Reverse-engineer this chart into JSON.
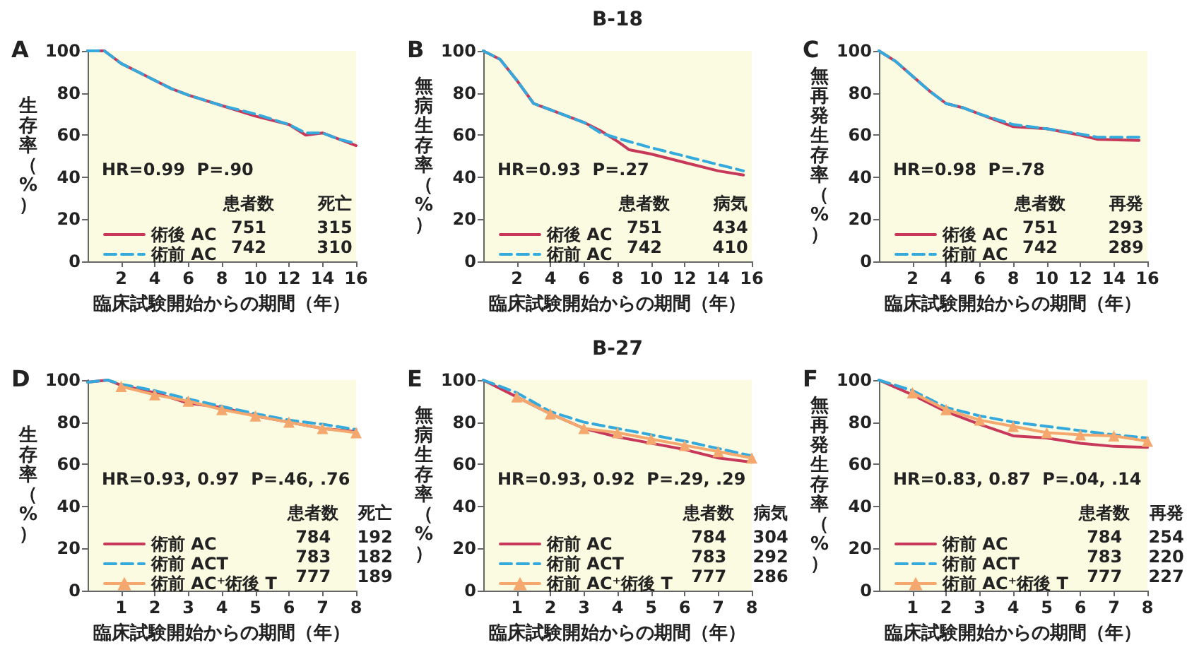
{
  "chart_data": [
    {
      "type": "line",
      "title": "A",
      "xlabel": "臨床試験開始からの期間（年）",
      "ylabel": "生存率（%）",
      "xlim": [
        0,
        16
      ],
      "xticks": [
        2,
        4,
        6,
        8,
        10,
        12,
        14,
        16
      ],
      "ylim": [
        0,
        100
      ],
      "yticks": [
        0,
        20,
        40,
        60,
        80,
        100
      ],
      "grid": false,
      "legend": "bottom left",
      "annotations": [
        "HR=0.99  P=.90",
        "患者数",
        "死亡",
        "751",
        "315",
        "742",
        "310"
      ],
      "series": [
        {
          "name": "術後 AC",
          "color": "#c8385a",
          "line_style": "solid",
          "marker": "none",
          "x": [
            0,
            1,
            2,
            3,
            4,
            5,
            6,
            8,
            10,
            12,
            13,
            14,
            15,
            16
          ],
          "values": [
            100,
            100,
            94,
            90,
            86,
            82,
            79,
            74,
            69,
            65,
            60,
            61,
            58,
            55
          ]
        },
        {
          "name": "術前 AC",
          "color": "#33a9dc",
          "line_style": "dashed",
          "marker": "none",
          "x": [
            0,
            1,
            2,
            3,
            4,
            5,
            6,
            8,
            10,
            12,
            13,
            14,
            15,
            16
          ],
          "values": [
            100,
            100,
            94,
            90,
            86,
            82,
            79,
            74,
            70,
            65,
            61,
            61,
            58,
            56
          ]
        }
      ]
    },
    {
      "type": "line",
      "title": "B",
      "subtitle": "B-18",
      "xlabel": "臨床試験開始からの期間（年）",
      "ylabel": "無病生存率（%）",
      "xlim": [
        0,
        16
      ],
      "xticks": [
        2,
        4,
        6,
        8,
        10,
        12,
        14,
        16
      ],
      "ylim": [
        0,
        100
      ],
      "yticks": [
        0,
        20,
        40,
        60,
        80,
        100
      ],
      "grid": false,
      "legend": "bottom left",
      "annotations": [
        "HR=0.93  P=.27",
        "患者数",
        "病気",
        "751",
        "434",
        "742",
        "410"
      ],
      "series": [
        {
          "name": "術後 AC",
          "color": "#c8385a",
          "line_style": "solid",
          "marker": "none",
          "x": [
            0,
            0.5,
            1,
            2,
            3,
            4,
            6,
            7,
            8,
            8.7,
            10,
            12,
            14,
            15.5
          ],
          "values": [
            100,
            98,
            96,
            86,
            75,
            72,
            66,
            62,
            57,
            53,
            51,
            47,
            43,
            41
          ]
        },
        {
          "name": "術前 AC",
          "color": "#33a9dc",
          "line_style": "dashed",
          "marker": "none",
          "x": [
            0,
            0.5,
            1,
            2,
            3,
            4,
            6,
            7,
            8,
            10,
            12,
            14,
            15.5
          ],
          "values": [
            100,
            98,
            96,
            86,
            75,
            72,
            66,
            61,
            58.5,
            54,
            50,
            46,
            43
          ]
        }
      ]
    },
    {
      "type": "line",
      "title": "C",
      "xlabel": "臨床試験開始からの期間（年）",
      "ylabel": "無再発生存率（%）",
      "xlim": [
        0,
        16
      ],
      "xticks": [
        2,
        4,
        6,
        8,
        10,
        12,
        14,
        16
      ],
      "ylim": [
        0,
        100
      ],
      "yticks": [
        0,
        20,
        40,
        60,
        80,
        100
      ],
      "grid": false,
      "legend": "bottom left",
      "annotations": [
        "HR=0.98  P=.78",
        "患者数",
        "再発",
        "751",
        "293",
        "742",
        "289"
      ],
      "series": [
        {
          "name": "術後 AC",
          "color": "#c8385a",
          "line_style": "solid",
          "marker": "none",
          "x": [
            0,
            1,
            2,
            3,
            4,
            5,
            6,
            7,
            8,
            10,
            12,
            13,
            15.5
          ],
          "values": [
            100,
            95,
            88,
            81,
            75,
            73,
            70,
            67,
            64,
            63,
            60,
            58,
            57.5
          ]
        },
        {
          "name": "術前 AC",
          "color": "#33a9dc",
          "line_style": "dashed",
          "marker": "none",
          "x": [
            0,
            1,
            2,
            3,
            4,
            5,
            6,
            7,
            8,
            10,
            12,
            13,
            15.5
          ],
          "values": [
            100,
            95,
            88,
            81,
            75,
            73,
            70,
            67.5,
            65,
            63,
            60.5,
            59,
            59
          ]
        }
      ]
    },
    {
      "type": "line",
      "title": "D",
      "xlabel": "臨床試験開始からの期間（年）",
      "ylabel": "生存率（%）",
      "xlim": [
        0,
        8
      ],
      "xticks": [
        1,
        2,
        3,
        4,
        5,
        6,
        7,
        8
      ],
      "ylim": [
        0,
        100
      ],
      "yticks": [
        0,
        20,
        40,
        60,
        80,
        100
      ],
      "grid": false,
      "legend": "bottom left",
      "annotations": [
        "HR=0.93, 0.97  P=.46, .76",
        "患者数",
        "死亡",
        "784",
        "192",
        "783",
        "182",
        "777",
        "189"
      ],
      "series": [
        {
          "name": "術前 AC",
          "color": "#c8385a",
          "line_style": "solid",
          "marker": "none",
          "x": [
            0,
            0.6,
            1,
            2,
            3,
            4,
            5,
            6,
            7,
            8
          ],
          "values": [
            99,
            100,
            97.5,
            94,
            89,
            87,
            83,
            80,
            77,
            75.5
          ]
        },
        {
          "name": "術前 ACT",
          "color": "#33a9dc",
          "line_style": "dashed",
          "marker": "none",
          "x": [
            0,
            0.6,
            1,
            2,
            3,
            4,
            5,
            6,
            7,
            8
          ],
          "values": [
            99,
            100,
            98,
            95,
            91,
            87.5,
            84,
            81,
            79,
            76.5
          ]
        },
        {
          "name": "術前 AC⁺術後 T",
          "color": "#f5a86e",
          "line_style": "solid",
          "marker": "triangle",
          "x": [
            1,
            2,
            3,
            4,
            5,
            6,
            7,
            8
          ],
          "values": [
            97,
            93,
            90,
            86,
            83,
            80,
            77,
            75
          ]
        }
      ]
    },
    {
      "type": "line",
      "title": "E",
      "subtitle": "B-27",
      "xlabel": "臨床試験開始からの期間（年）",
      "ylabel": "無病生存率（%）",
      "xlim": [
        0,
        8
      ],
      "xticks": [
        1,
        2,
        3,
        4,
        5,
        6,
        7,
        8
      ],
      "ylim": [
        0,
        100
      ],
      "yticks": [
        0,
        20,
        40,
        60,
        80,
        100
      ],
      "grid": false,
      "legend": "bottom left",
      "annotations": [
        "HR=0.93, 0.92  P=.29, .29",
        "患者数",
        "病気",
        "784",
        "304",
        "783",
        "292",
        "777",
        "286"
      ],
      "series": [
        {
          "name": "術前 AC",
          "color": "#c8385a",
          "line_style": "solid",
          "marker": "none",
          "x": [
            0,
            1,
            2,
            3,
            4,
            5,
            6,
            7,
            8
          ],
          "values": [
            100,
            92,
            84,
            77,
            73,
            70,
            67,
            63,
            61
          ]
        },
        {
          "name": "術前 ACT",
          "color": "#33a9dc",
          "line_style": "dashed",
          "marker": "none",
          "x": [
            0,
            1,
            2,
            3,
            4,
            5,
            6,
            7,
            8
          ],
          "values": [
            100,
            94,
            85,
            80,
            77,
            74,
            71,
            67.5,
            64
          ]
        },
        {
          "name": "術前 AC⁺術後 T",
          "color": "#f5a86e",
          "line_style": "solid",
          "marker": "triangle",
          "x": [
            1,
            2,
            3,
            4,
            5,
            6,
            7,
            8
          ],
          "values": [
            92,
            84,
            77,
            75,
            72,
            69,
            66,
            63
          ]
        }
      ]
    },
    {
      "type": "line",
      "title": "F",
      "xlabel": "臨床試験開始からの期間（年）",
      "ylabel": "無再発生存率（%）",
      "xlim": [
        0,
        8
      ],
      "xticks": [
        1,
        2,
        3,
        4,
        5,
        6,
        7,
        8
      ],
      "ylim": [
        0,
        100
      ],
      "yticks": [
        0,
        20,
        40,
        60,
        80,
        100
      ],
      "grid": false,
      "legend": "bottom left",
      "annotations": [
        "HR=0.83, 0.87  P=.04, .14",
        "患者数",
        "再発",
        "784",
        "254",
        "783",
        "220",
        "777",
        "227"
      ],
      "series": [
        {
          "name": "術前 AC",
          "color": "#c8385a",
          "line_style": "solid",
          "marker": "none",
          "x": [
            0,
            1,
            2,
            3,
            4,
            5,
            6,
            7,
            8
          ],
          "values": [
            100,
            93,
            85,
            79,
            73.5,
            72.5,
            70,
            68.5,
            68
          ]
        },
        {
          "name": "術前 ACT",
          "color": "#33a9dc",
          "line_style": "dashed",
          "marker": "none",
          "x": [
            0,
            1,
            2,
            3,
            4,
            5,
            6,
            7,
            8
          ],
          "values": [
            100,
            95,
            87,
            83,
            80,
            78,
            76,
            74,
            72.5
          ]
        },
        {
          "name": "術前 AC⁺術後 T",
          "color": "#f5a86e",
          "line_style": "solid",
          "marker": "triangle",
          "x": [
            1,
            2,
            3,
            4,
            5,
            6,
            7,
            8
          ],
          "values": [
            94,
            86,
            81,
            78,
            75,
            74,
            73.5,
            71
          ]
        }
      ]
    }
  ]
}
